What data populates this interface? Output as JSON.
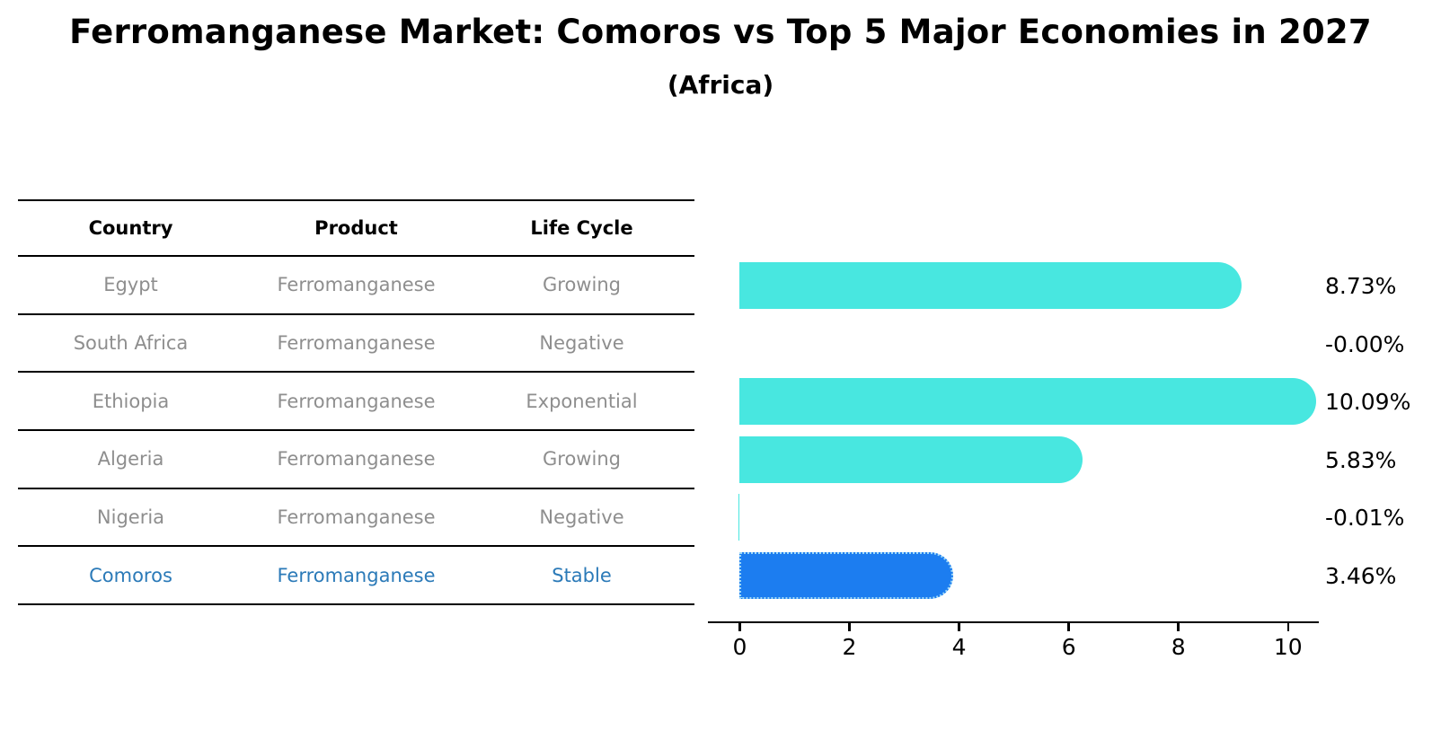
{
  "title": "Ferromanganese Market: Comoros vs Top 5 Major Economies in 2027",
  "subtitle": "(Africa)",
  "colors": {
    "bar_default": "#48E7E0",
    "bar_highlight": "#1C7DF0",
    "bar_highlight_border": "#9fd9f7",
    "highlight_text": "#2b7ab8",
    "row_text": "#8e8e8e",
    "header_text": "#000000",
    "axis": "#000000"
  },
  "table": {
    "headers": [
      "Country",
      "Product",
      "Life Cycle"
    ],
    "rows": [
      {
        "country": "Egypt",
        "product": "Ferromanganese",
        "life_cycle": "Growing",
        "highlight": false
      },
      {
        "country": "South Africa",
        "product": "Ferromanganese",
        "life_cycle": "Negative",
        "highlight": false
      },
      {
        "country": "Ethiopia",
        "product": "Ferromanganese",
        "life_cycle": "Exponential",
        "highlight": false
      },
      {
        "country": "Algeria",
        "product": "Ferromanganese",
        "life_cycle": "Growing",
        "highlight": false
      },
      {
        "country": "Nigeria",
        "product": "Ferromanganese",
        "life_cycle": "Negative",
        "highlight": false
      },
      {
        "country": "Comoros",
        "product": "Ferromanganese",
        "life_cycle": "Stable",
        "highlight": true
      }
    ]
  },
  "chart_data": {
    "type": "bar",
    "orientation": "horizontal",
    "title": "Ferromanganese Market: Comoros vs Top 5 Major Economies in 2027 (Africa)",
    "categories": [
      "Egypt",
      "South Africa",
      "Ethiopia",
      "Algeria",
      "Nigeria",
      "Comoros"
    ],
    "values": [
      8.73,
      -0.0,
      10.09,
      5.83,
      -0.01,
      3.46
    ],
    "labels": [
      "8.73%",
      "-0.00%",
      "10.09%",
      "5.83%",
      "-0.01%",
      "3.46%"
    ],
    "highlight_index": 5,
    "xticks": [
      0,
      2,
      4,
      6,
      8,
      10
    ],
    "xlim": [
      -0.58,
      10.56
    ],
    "unit": "%",
    "grid": false,
    "legend": false
  }
}
